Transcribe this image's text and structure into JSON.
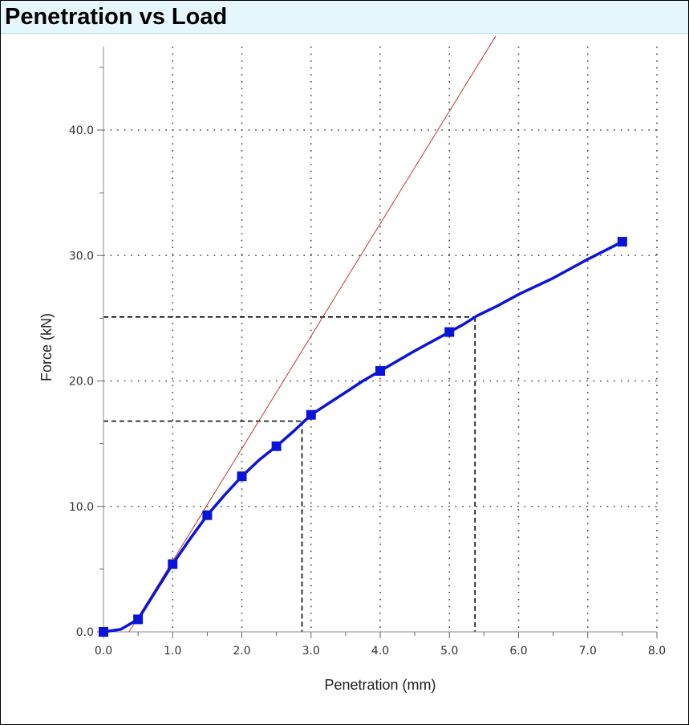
{
  "chart_data": {
    "type": "line",
    "title": "Penetration vs Load",
    "xlabel": "Penetration (mm)",
    "ylabel": "Force (kN)",
    "xlim": [
      0,
      8
    ],
    "ylim": [
      0,
      45
    ],
    "x_ticks": [
      "0.0",
      "1.0",
      "2.0",
      "3.0",
      "4.0",
      "5.0",
      "6.0",
      "7.0",
      "8.0"
    ],
    "y_ticks": [
      "0.0",
      "10.0",
      "20.0",
      "30.0",
      "40.0"
    ],
    "grid": true,
    "colors": {
      "series": "#0a14d8",
      "tangent": "#c0392b",
      "reference": "#000000"
    },
    "series": [
      {
        "x": [
          0.0,
          0.5,
          1.0,
          1.5,
          2.0,
          2.5,
          3.0,
          4.0,
          5.0,
          7.5
        ],
        "y": [
          0.0,
          1.0,
          5.4,
          9.3,
          12.4,
          14.8,
          17.3,
          20.8,
          23.9,
          31.1
        ],
        "curve": [
          [
            0,
            0
          ],
          [
            0.25,
            0.2
          ],
          [
            0.5,
            1.0
          ],
          [
            0.75,
            3.2
          ],
          [
            1.0,
            5.4
          ],
          [
            1.25,
            7.4
          ],
          [
            1.5,
            9.3
          ],
          [
            1.75,
            10.9
          ],
          [
            2.0,
            12.4
          ],
          [
            2.25,
            13.7
          ],
          [
            2.5,
            14.8
          ],
          [
            2.75,
            16.0
          ],
          [
            3.0,
            17.3
          ],
          [
            3.25,
            18.2
          ],
          [
            3.5,
            19.1
          ],
          [
            3.75,
            20.0
          ],
          [
            4.0,
            20.8
          ],
          [
            4.5,
            22.4
          ],
          [
            5.0,
            23.9
          ],
          [
            5.2,
            24.5
          ],
          [
            5.4,
            25.2
          ],
          [
            5.7,
            26.0
          ],
          [
            6.0,
            26.9
          ],
          [
            6.5,
            28.2
          ],
          [
            7.0,
            29.7
          ],
          [
            7.5,
            31.1
          ]
        ]
      }
    ],
    "tangent_line": {
      "x": [
        0.37,
        5.67
      ],
      "y": [
        0.0,
        47.5
      ]
    },
    "reference_lines": [
      {
        "x": 2.87,
        "y": 16.8
      },
      {
        "x": 5.37,
        "y": 25.1
      }
    ]
  }
}
